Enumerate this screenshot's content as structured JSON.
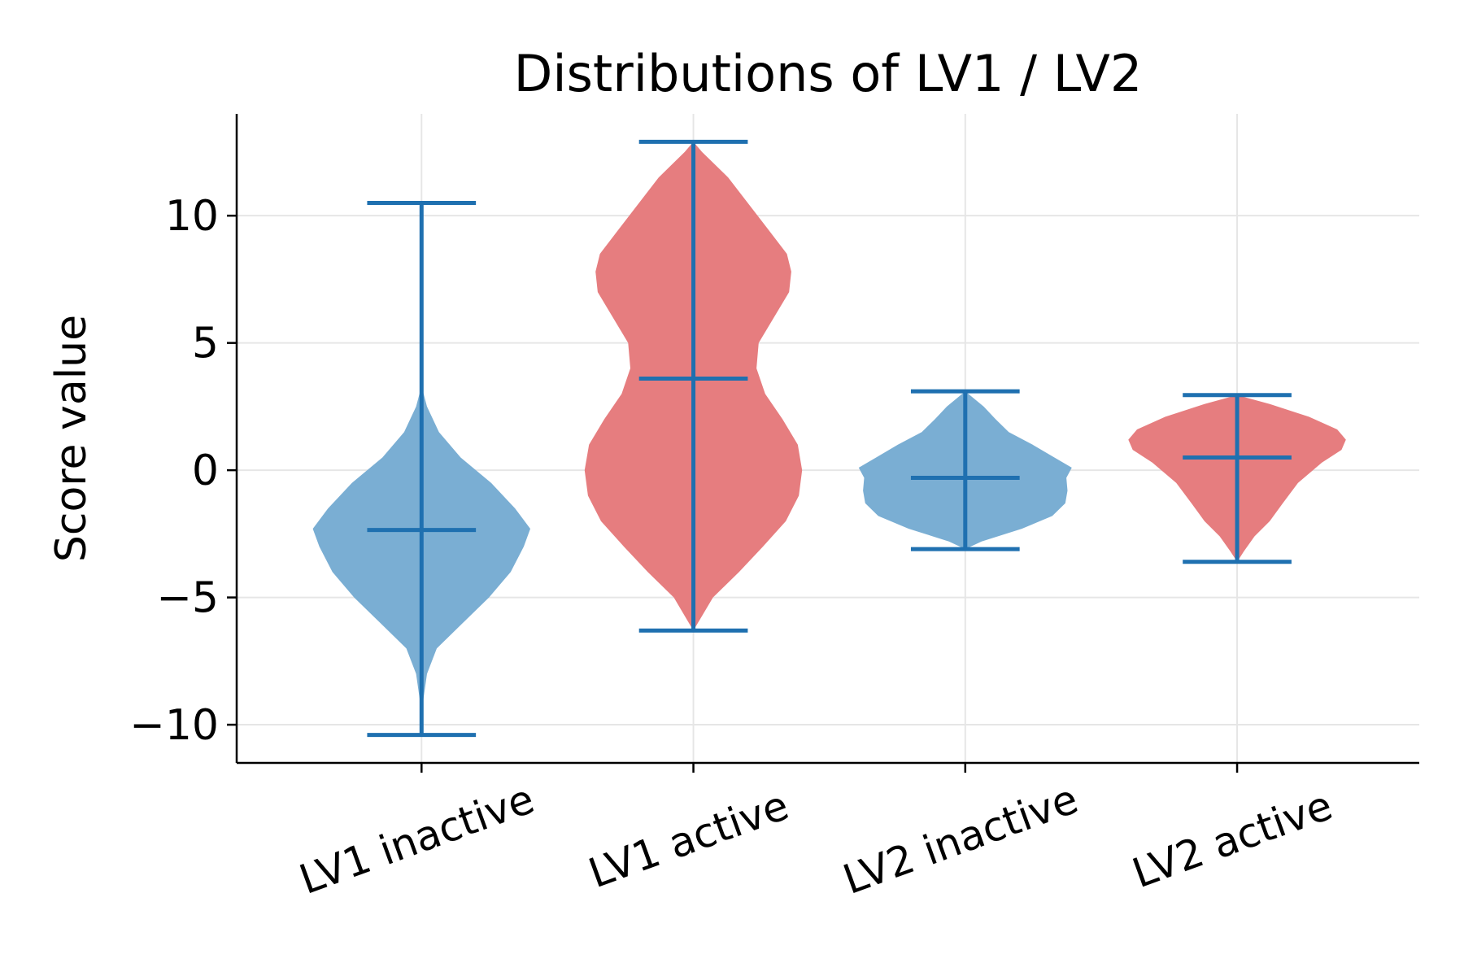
{
  "chart_data": {
    "type": "violin",
    "title": "Distributions of LV1 / LV2",
    "xlabel": "",
    "ylabel": "Score value",
    "ylim": [
      -11.5,
      14
    ],
    "yticks": [
      -10,
      -5,
      0,
      5,
      10
    ],
    "ytick_labels": [
      "−10",
      "−5",
      "0",
      "5",
      "10"
    ],
    "grid": true,
    "categories": [
      "LV1 inactive",
      "LV1 active",
      "LV2 inactive",
      "LV2 active"
    ],
    "colors": {
      "inactive": "#7aaed3",
      "active": "#e67d7f",
      "stat_lines": "#1f70b0"
    },
    "violins": [
      {
        "category": "LV1 inactive",
        "color_key": "inactive",
        "min": -10.4,
        "max": 10.5,
        "median": -2.35,
        "profile": [
          [
            -9.5,
            0.0
          ],
          [
            -8,
            0.05
          ],
          [
            -7,
            0.14
          ],
          [
            -6,
            0.38
          ],
          [
            -5,
            0.62
          ],
          [
            -4,
            0.82
          ],
          [
            -3,
            0.94
          ],
          [
            -2.3,
            1.0
          ],
          [
            -1.5,
            0.86
          ],
          [
            -0.5,
            0.64
          ],
          [
            0.5,
            0.36
          ],
          [
            1.5,
            0.16
          ],
          [
            2.5,
            0.05
          ],
          [
            3.3,
            0.0
          ]
        ]
      },
      {
        "category": "LV1 active",
        "color_key": "active",
        "min": -6.3,
        "max": 12.9,
        "median": 3.6,
        "profile": [
          [
            -6.3,
            0.0
          ],
          [
            -5,
            0.18
          ],
          [
            -4,
            0.42
          ],
          [
            -3,
            0.64
          ],
          [
            -2,
            0.85
          ],
          [
            -1,
            0.97
          ],
          [
            0,
            1.0
          ],
          [
            1,
            0.96
          ],
          [
            2,
            0.82
          ],
          [
            3,
            0.66
          ],
          [
            4,
            0.58
          ],
          [
            5,
            0.6
          ],
          [
            6,
            0.74
          ],
          [
            7,
            0.88
          ],
          [
            7.8,
            0.9
          ],
          [
            8.5,
            0.86
          ],
          [
            9.5,
            0.68
          ],
          [
            10.5,
            0.5
          ],
          [
            11.5,
            0.32
          ],
          [
            12.5,
            0.08
          ],
          [
            12.9,
            0.0
          ]
        ]
      },
      {
        "category": "LV2 inactive",
        "color_key": "inactive",
        "min": -3.1,
        "max": 3.1,
        "median": -0.3,
        "profile": [
          [
            -3.1,
            0.0
          ],
          [
            -2.8,
            0.15
          ],
          [
            -2.3,
            0.52
          ],
          [
            -1.8,
            0.8
          ],
          [
            -1.3,
            0.92
          ],
          [
            -0.8,
            0.94
          ],
          [
            -0.3,
            0.93
          ],
          [
            0.1,
            0.98
          ],
          [
            0.5,
            0.82
          ],
          [
            1,
            0.62
          ],
          [
            1.5,
            0.4
          ],
          [
            2,
            0.28
          ],
          [
            2.5,
            0.17
          ],
          [
            3.1,
            0.0
          ]
        ]
      },
      {
        "category": "LV2 active",
        "color_key": "active",
        "min": -3.6,
        "max": 2.95,
        "median": 0.5,
        "profile": [
          [
            -3.6,
            0.0
          ],
          [
            -3.2,
            0.06
          ],
          [
            -2.6,
            0.16
          ],
          [
            -2,
            0.3
          ],
          [
            -1.3,
            0.42
          ],
          [
            -0.5,
            0.56
          ],
          [
            0.3,
            0.78
          ],
          [
            0.8,
            0.96
          ],
          [
            1.2,
            1.0
          ],
          [
            1.6,
            0.92
          ],
          [
            2.1,
            0.66
          ],
          [
            2.6,
            0.3
          ],
          [
            2.95,
            0.0
          ]
        ]
      }
    ]
  }
}
